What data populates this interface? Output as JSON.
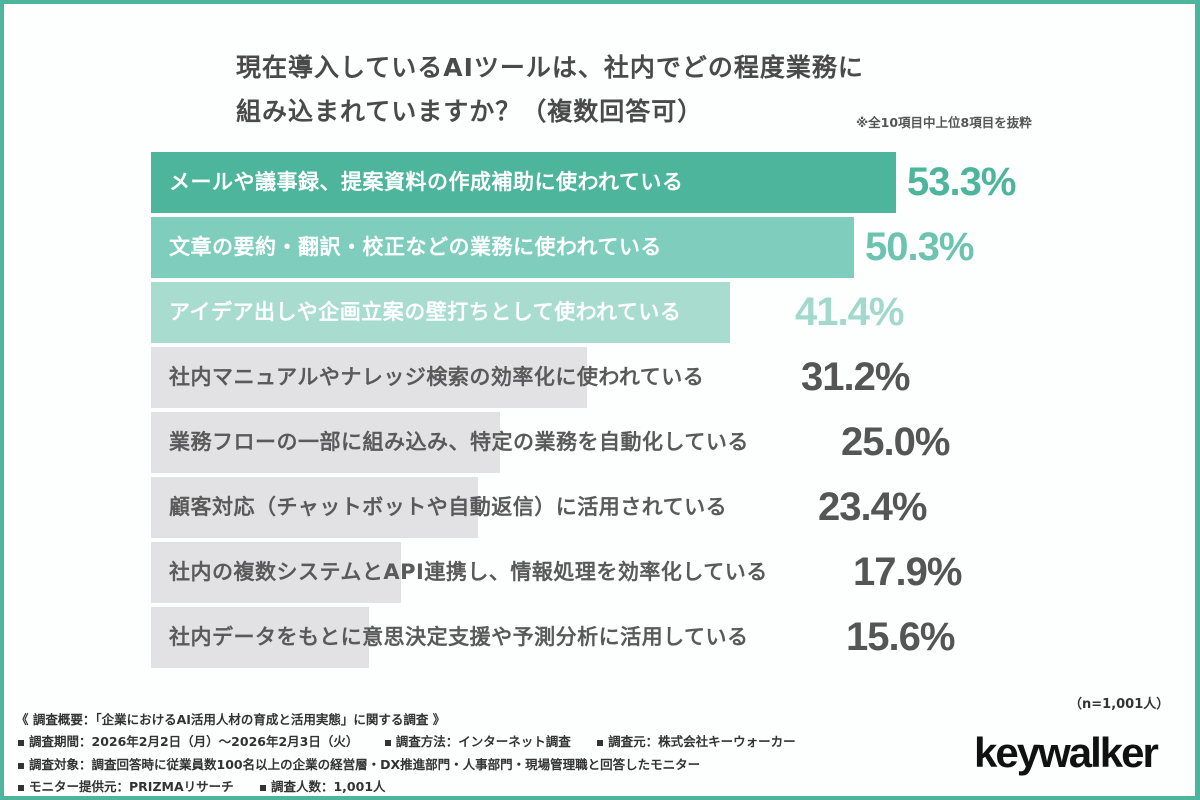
{
  "title": {
    "line1": "現在導入しているAIツールは、社内でどの程度業務に",
    "line2": "組み込まれていますか？（複数回答可）",
    "note": "※全10項目中上位8項目を抜粋"
  },
  "colors": {
    "frame": "#4db59c",
    "bar1": "#4db59c",
    "bar2": "#7fcebd",
    "bar3": "#a8dccf",
    "bar_gray": "#e2e2e4",
    "value1": "#4db59c",
    "value2": "#6cc4b0",
    "value3": "#a3d9cc",
    "value_gray": "#555555",
    "label_light": "#ffffff",
    "label_gray": "#5a5a5a"
  },
  "chart_data": {
    "type": "bar",
    "orientation": "horizontal",
    "title": "現在導入しているAIツールは、社内でどの程度業務に組み込まれていますか？（複数回答可）",
    "subtitle": "※全10項目中上位8項目を抜粋",
    "categories": [
      "メールや議事録、提案資料の作成補助に使われている",
      "文章の要約・翻訳・校正などの業務に使われている",
      "アイデア出しや企画立案の壁打ちとして使われている",
      "社内マニュアルやナレッジ検索の効率化に使われている",
      "業務フローの一部に組み込み、特定の業務を自動化している",
      "顧客対応（チャットボットや自動返信）に活用されている",
      "社内の複数システムとAPI連携し、情報処理を効率化している",
      "社内データをもとに意思決定支援や予測分析に活用している"
    ],
    "values": [
      53.3,
      50.3,
      41.4,
      31.2,
      25.0,
      23.4,
      17.9,
      15.6
    ],
    "value_labels": [
      "53.3%",
      "50.3%",
      "41.4%",
      "31.2%",
      "25.0%",
      "23.4%",
      "17.9%",
      "15.6%"
    ],
    "unit": "%",
    "sample_size": "n=1,001人",
    "xlabel": "",
    "ylabel": "",
    "grid": false,
    "legend": null
  },
  "footer": {
    "heading": "《 調査概要：「企業におけるAI活用人材の育成と活用実態」に関する調査 》",
    "lines": [
      [
        "調査期間：2026年2月2日（月）～2026年2月3日（火）",
        "調査方法：インターネット調査",
        "調査元：株式会社キーウォーカー"
      ],
      [
        "調査対象：調査回答時に従業員数100名以上の企業の経営層・DX推進部門・人事部門・現場管理職と回答したモニター"
      ],
      [
        "モニター提供元：PRIZMAリサーチ",
        "調査人数：1,001人"
      ]
    ],
    "sample": "（n=1,001人）",
    "logo": "keywalker"
  }
}
